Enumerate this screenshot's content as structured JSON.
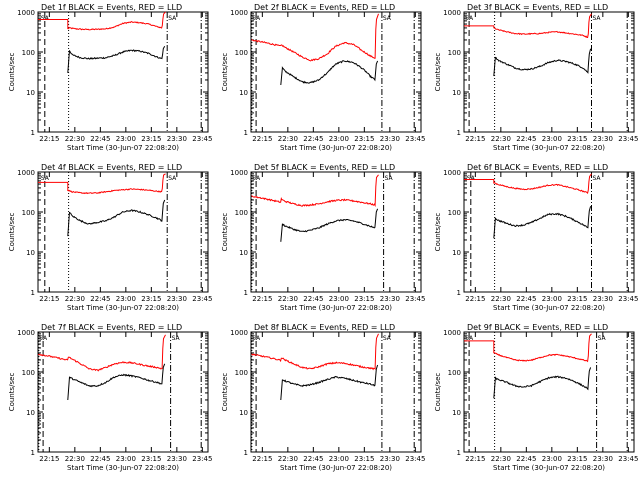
{
  "chart_data": {
    "type": "line",
    "ylabel": "Counts/sec",
    "yscale": "log",
    "ylim": [
      1,
      1000
    ],
    "yticks": [
      "1",
      "10",
      "100",
      "1000"
    ],
    "xlabel": "Start Time (30-Jun-07 22:08:20)",
    "xlim_minutes": [
      0,
      100
    ],
    "xticks_minutes": [
      6.67,
      21.67,
      36.67,
      51.67,
      66.67,
      81.67,
      96.67
    ],
    "xtick_labels": [
      "22:15",
      "22:30",
      "22:45",
      "23:00",
      "23:15",
      "23:30",
      "23:45"
    ],
    "series_names": [
      "Events",
      "LLD"
    ],
    "series_colors": {
      "Events": "#000000",
      "LLD": "#ff0000"
    },
    "saa_label": "SA",
    "panels": [
      {
        "title": "Det 1f  BLACK = Events, RED = LLD",
        "t_saa_end": 4,
        "t_start": 17.5,
        "t_end": 74,
        "t_saa_start": 76,
        "lld_pre": 650,
        "lld_post": 1000,
        "x": [
          17.5,
          18.5,
          20,
          25,
          30,
          35,
          40,
          45,
          50,
          55,
          60,
          65,
          70,
          73,
          74
        ],
        "events": [
          30,
          110,
          85,
          72,
          68,
          70,
          72,
          82,
          100,
          110,
          105,
          92,
          75,
          68,
          140
        ],
        "lld": [
          380,
          400,
          390,
          370,
          365,
          370,
          380,
          420,
          520,
          560,
          540,
          500,
          430,
          400,
          950
        ]
      },
      {
        "title": "Det 2f  BLACK = Events, RED = LLD",
        "t_saa_end": 3,
        "t_start": 0,
        "t_end": 74,
        "t_saa_start": 77,
        "lld_pre": 200,
        "lld_post": 900,
        "x": [
          17.5,
          18.5,
          20,
          25,
          30,
          35,
          40,
          45,
          50,
          55,
          60,
          65,
          70,
          73,
          74
        ],
        "events": [
          15,
          40,
          33,
          24,
          18,
          17,
          20,
          30,
          50,
          60,
          55,
          40,
          25,
          20,
          60
        ],
        "lld": [
          150,
          145,
          130,
          100,
          75,
          62,
          68,
          90,
          140,
          170,
          155,
          110,
          80,
          70,
          800
        ]
      },
      {
        "title": "Det 3f  BLACK = Events, RED = LLD",
        "t_saa_end": 3,
        "t_start": 17.5,
        "t_end": 74,
        "t_saa_start": 75,
        "lld_pre": 450,
        "lld_post": 900,
        "x": [
          17.5,
          18.5,
          20,
          25,
          30,
          35,
          40,
          45,
          50,
          55,
          60,
          65,
          70,
          73,
          74
        ],
        "events": [
          25,
          75,
          62,
          50,
          40,
          36,
          38,
          44,
          55,
          62,
          58,
          50,
          40,
          30,
          120
        ],
        "lld": [
          400,
          380,
          360,
          320,
          290,
          280,
          285,
          290,
          310,
          320,
          300,
          280,
          260,
          230,
          850
        ]
      },
      {
        "title": "Det 4f  BLACK = Events, RED = LLD",
        "t_saa_end": 4,
        "t_start": 17.5,
        "t_end": 74,
        "t_saa_start": 76,
        "lld_pre": 550,
        "lld_post": 900,
        "x": [
          17.5,
          18.5,
          20,
          25,
          30,
          35,
          40,
          45,
          50,
          55,
          60,
          65,
          70,
          73,
          74
        ],
        "events": [
          25,
          100,
          80,
          60,
          50,
          55,
          60,
          75,
          100,
          110,
          100,
          85,
          70,
          60,
          200
        ],
        "lld": [
          350,
          340,
          320,
          300,
          295,
          300,
          320,
          345,
          360,
          375,
          365,
          350,
          330,
          320,
          900
        ]
      },
      {
        "title": "Det 5f  BLACK = Events, RED = LLD",
        "t_saa_end": 3,
        "t_start": 0,
        "t_end": 74,
        "t_saa_start": 78,
        "lld_pre": 250,
        "lld_post": 850,
        "x": [
          17.5,
          18.5,
          20,
          25,
          30,
          35,
          40,
          45,
          50,
          55,
          60,
          65,
          70,
          73,
          74
        ],
        "events": [
          18,
          50,
          45,
          37,
          32,
          35,
          40,
          50,
          60,
          64,
          60,
          52,
          44,
          40,
          120
        ],
        "lld": [
          220,
          200,
          185,
          160,
          145,
          150,
          160,
          180,
          195,
          200,
          190,
          175,
          160,
          150,
          850
        ]
      },
      {
        "title": "Det 6f  BLACK = Events, RED = LLD",
        "t_saa_end": 4,
        "t_start": 17.5,
        "t_end": 74,
        "t_saa_start": 75,
        "lld_pre": 650,
        "lld_post": 900,
        "x": [
          17.5,
          18.5,
          20,
          25,
          30,
          35,
          40,
          45,
          50,
          55,
          60,
          65,
          70,
          73,
          74
        ],
        "events": [
          22,
          70,
          62,
          52,
          45,
          47,
          55,
          70,
          88,
          90,
          78,
          62,
          48,
          40,
          140
        ],
        "lld": [
          550,
          520,
          490,
          430,
          390,
          370,
          380,
          420,
          470,
          480,
          430,
          380,
          330,
          300,
          850
        ]
      },
      {
        "title": "Det 7f  BLACK = Events, RED = LLD",
        "t_saa_end": 3,
        "t_start": 0,
        "t_end": 74,
        "t_saa_start": 78,
        "lld_pre": 280,
        "lld_post": 850,
        "x": [
          17.5,
          18.5,
          20,
          25,
          30,
          35,
          40,
          45,
          50,
          55,
          60,
          65,
          70,
          73,
          74
        ],
        "events": [
          20,
          75,
          68,
          55,
          45,
          45,
          55,
          75,
          85,
          80,
          72,
          62,
          55,
          50,
          160
        ],
        "lld": [
          240,
          230,
          210,
          160,
          120,
          110,
          130,
          160,
          175,
          170,
          155,
          140,
          130,
          120,
          800
        ]
      },
      {
        "title": "Det 8f  BLACK = Events, RED = LLD",
        "t_saa_end": 3,
        "t_start": 0,
        "t_end": 74,
        "t_saa_start": 77,
        "lld_pre": 280,
        "lld_post": 900,
        "x": [
          17.5,
          18.5,
          20,
          25,
          30,
          35,
          40,
          45,
          50,
          55,
          60,
          65,
          70,
          73,
          74
        ],
        "events": [
          20,
          65,
          60,
          50,
          45,
          48,
          55,
          65,
          75,
          70,
          62,
          55,
          50,
          45,
          150
        ],
        "lld": [
          230,
          220,
          200,
          160,
          130,
          120,
          135,
          160,
          170,
          165,
          150,
          135,
          125,
          118,
          850
        ]
      },
      {
        "title": "Det 9f  BLACK = Events, RED = LLD",
        "t_saa_end": 3,
        "t_start": 17.5,
        "t_end": 74,
        "t_saa_start": 78,
        "lld_pre": 600,
        "lld_post": 900,
        "x": [
          17.5,
          18.5,
          20,
          25,
          30,
          35,
          40,
          45,
          50,
          55,
          60,
          65,
          70,
          73,
          74
        ],
        "events": [
          22,
          70,
          65,
          55,
          45,
          42,
          46,
          58,
          72,
          76,
          70,
          58,
          45,
          38,
          130
        ],
        "lld": [
          300,
          290,
          270,
          230,
          200,
          190,
          200,
          230,
          265,
          270,
          250,
          225,
          200,
          185,
          850
        ]
      }
    ]
  }
}
